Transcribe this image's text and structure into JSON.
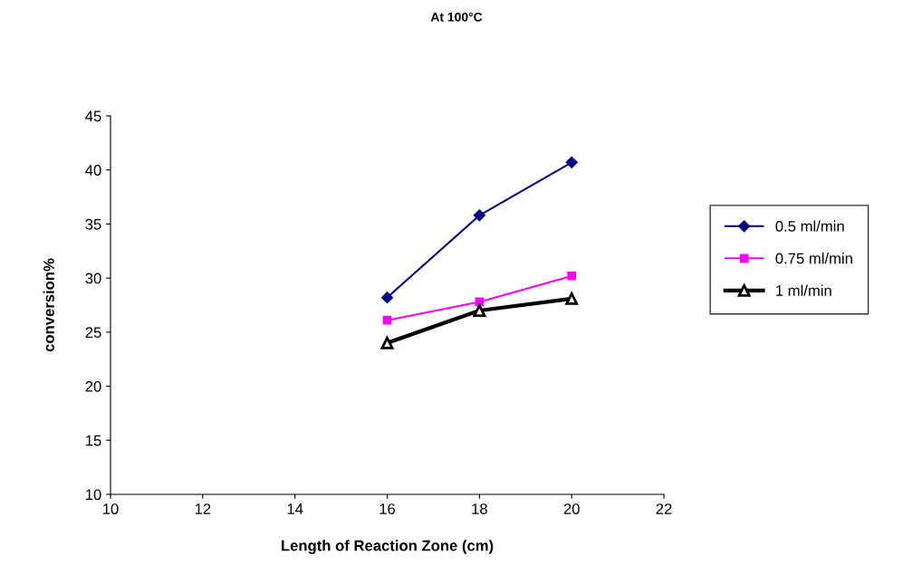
{
  "chart_data": {
    "type": "line",
    "title": "At 100°C",
    "xlabel": "Length of Reaction Zone (cm)",
    "ylabel": "conversion%",
    "x": [
      16,
      18,
      20
    ],
    "series": [
      {
        "name": "0.5 ml/min",
        "color": "#000080",
        "marker": "diamond",
        "values": [
          28.2,
          35.8,
          40.7
        ]
      },
      {
        "name": "0.75 ml/min",
        "color": "#ff00ff",
        "marker": "square",
        "values": [
          26.1,
          27.8,
          30.2
        ]
      },
      {
        "name": "1 ml/min",
        "color": "#000000",
        "marker": "triangle",
        "values": [
          24.0,
          27.0,
          28.1
        ]
      }
    ],
    "xlim": [
      10,
      22
    ],
    "xticks": [
      10,
      12,
      14,
      16,
      18,
      20,
      22
    ],
    "ylim": [
      10,
      45
    ],
    "yticks": [
      10,
      15,
      20,
      25,
      30,
      35,
      40,
      45
    ],
    "grid": false,
    "legend": "right",
    "line_style": "solid"
  }
}
